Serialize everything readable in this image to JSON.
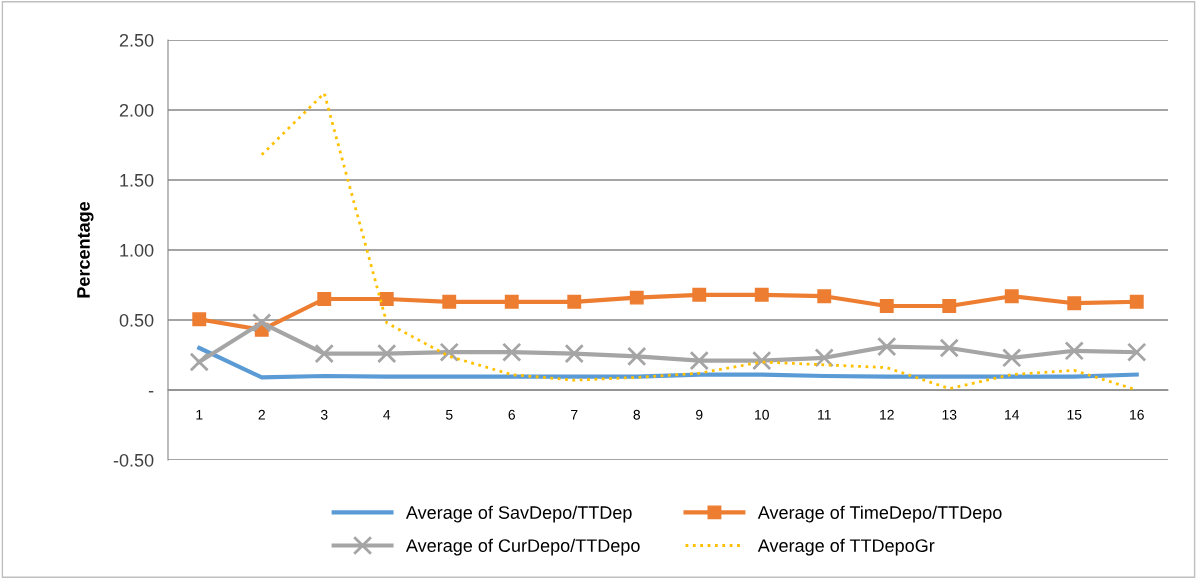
{
  "chart_data": {
    "type": "line",
    "ylabel": "Percentage",
    "categories": [
      "1",
      "2",
      "3",
      "4",
      "5",
      "6",
      "7",
      "8",
      "9",
      "10",
      "11",
      "12",
      "13",
      "14",
      "15",
      "16"
    ],
    "ylim": [
      -0.5,
      2.5
    ],
    "yticks": [
      {
        "value": -0.5,
        "label": "-0.50"
      },
      {
        "value": 0,
        "label": "-"
      },
      {
        "value": 0.5,
        "label": "0.50"
      },
      {
        "value": 1,
        "label": "1.00"
      },
      {
        "value": 1.5,
        "label": "1.50"
      },
      {
        "value": 2,
        "label": "2.00"
      },
      {
        "value": 2.5,
        "label": "2.50"
      }
    ],
    "grid": "y",
    "legend": "bottom",
    "series": [
      {
        "name": "Average of SavDepo/TTDep",
        "color": "#5b9bd5",
        "marker": "none",
        "line_style": "solid",
        "values": [
          0.3,
          0.09,
          0.1,
          0.095,
          0.095,
          0.095,
          0.095,
          0.095,
          0.11,
          0.11,
          0.1,
          0.095,
          0.095,
          0.095,
          0.095,
          0.11
        ]
      },
      {
        "name": "Average of TimeDepo/TTDepo",
        "color": "#ed7d31",
        "marker": "square",
        "line_style": "solid",
        "values": [
          0.505,
          0.43,
          0.65,
          0.65,
          0.63,
          0.63,
          0.63,
          0.66,
          0.68,
          0.68,
          0.67,
          0.6,
          0.6,
          0.67,
          0.62,
          0.63
        ]
      },
      {
        "name": "Average of CurDepo/TTDepo",
        "color": "#a5a5a5",
        "marker": "cross",
        "line_style": "solid",
        "values": [
          0.2,
          0.48,
          0.26,
          0.26,
          0.27,
          0.27,
          0.26,
          0.24,
          0.21,
          0.21,
          0.23,
          0.31,
          0.3,
          0.23,
          0.28,
          0.27
        ]
      },
      {
        "name": "Average of TTDepoGr",
        "color": "#ffc000",
        "marker": "none",
        "line_style": "dotted",
        "values": [
          null,
          1.68,
          2.12,
          0.48,
          0.24,
          0.11,
          0.07,
          0.09,
          0.12,
          0.2,
          0.18,
          0.16,
          0.01,
          0.11,
          0.14,
          0.0
        ]
      }
    ]
  }
}
